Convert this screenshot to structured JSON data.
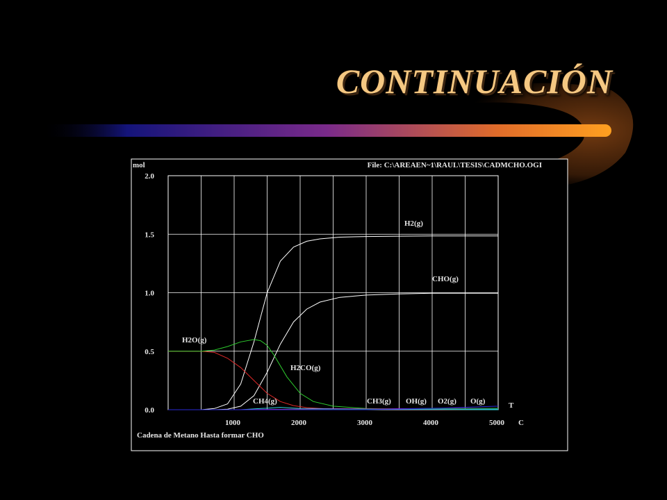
{
  "slide": {
    "title": "CONTINUACIÓN"
  },
  "chart_data": {
    "type": "line",
    "ylabel": "mol",
    "file_label": "File: C:\\AREAEN~1\\RAUL\\TESIS\\CADMCHO.OGI",
    "xaxis_unit_top": "T",
    "xaxis_unit_bottom": "C",
    "caption": "Cadena de Metano Hasta formar CHO",
    "xlim": [
      0,
      5000
    ],
    "ylim": [
      0,
      2
    ],
    "x_ticks": [
      1000,
      2000,
      3000,
      4000,
      5000
    ],
    "x_tick_labels": [
      "1000",
      "2000",
      "3000",
      "4000",
      "5000"
    ],
    "y_ticks": [
      0,
      0.5,
      1,
      1.5,
      2
    ],
    "y_tick_labels": [
      "0.0",
      "0.5",
      "1.0",
      "1.5",
      "2.0"
    ],
    "grid": true,
    "colors": {
      "background": "#000000",
      "frame": "#ffffff",
      "grid": "#ffffff",
      "title": "#f5c882"
    },
    "series": [
      {
        "name": "H2(g)",
        "color": "#ffffff",
        "x": [
          0,
          500,
          700,
          900,
          1100,
          1300,
          1500,
          1700,
          1900,
          2100,
          2300,
          2600,
          3000,
          3500,
          4000,
          4500,
          5000
        ],
        "y": [
          0.0,
          0.0,
          0.01,
          0.05,
          0.22,
          0.58,
          1.0,
          1.27,
          1.39,
          1.44,
          1.46,
          1.475,
          1.48,
          1.483,
          1.485,
          1.485,
          1.485
        ]
      },
      {
        "name": "CHO(g)",
        "color": "#ffffff",
        "x": [
          0,
          700,
          900,
          1100,
          1300,
          1500,
          1700,
          1900,
          2100,
          2300,
          2600,
          3000,
          3500,
          4000,
          4500,
          5000
        ],
        "y": [
          0.0,
          0.0,
          0.005,
          0.03,
          0.12,
          0.32,
          0.56,
          0.75,
          0.86,
          0.92,
          0.96,
          0.98,
          0.99,
          0.995,
          0.995,
          0.995
        ]
      },
      {
        "name": "H2O(g)",
        "color": "#e02828",
        "x": [
          0,
          500,
          700,
          900,
          1100,
          1300,
          1500,
          1700,
          1900,
          2100,
          2400,
          3000,
          5000
        ],
        "y": [
          0.5,
          0.5,
          0.49,
          0.44,
          0.36,
          0.25,
          0.14,
          0.07,
          0.035,
          0.018,
          0.008,
          0.003,
          0.001
        ]
      },
      {
        "name": "H2CO(g)",
        "color": "#2ecc2e",
        "x": [
          0,
          500,
          700,
          900,
          1100,
          1300,
          1400,
          1500,
          1600,
          1800,
          2000,
          2200,
          2500,
          3000,
          3500,
          5000
        ],
        "y": [
          0.5,
          0.5,
          0.51,
          0.54,
          0.58,
          0.6,
          0.59,
          0.55,
          0.47,
          0.28,
          0.14,
          0.07,
          0.03,
          0.01,
          0.004,
          0.002
        ]
      },
      {
        "name": "CH4(g)",
        "color": "#2fd6e0",
        "x": [
          0,
          1100,
          1400,
          1700,
          2000,
          5000
        ],
        "y": [
          0.0,
          0.0,
          0.01,
          0.02,
          0.01,
          0.0
        ]
      },
      {
        "name": "CH3(g)",
        "color": "#e020e0",
        "x": [
          0,
          1000,
          2000,
          3000,
          4000,
          5000
        ],
        "y": [
          0.0,
          0.0,
          0.005,
          0.008,
          0.01,
          0.012
        ]
      },
      {
        "name": "OH(g)",
        "color": "#1a9c1a",
        "x": [
          0,
          1500,
          3000,
          4000,
          5000
        ],
        "y": [
          0.0,
          0.0,
          0.004,
          0.008,
          0.012
        ]
      },
      {
        "name": "O2(g)",
        "color": "#1f9cc9",
        "x": [
          0,
          2000,
          3500,
          5000
        ],
        "y": [
          0.0,
          0.0,
          0.003,
          0.006
        ]
      },
      {
        "name": "O(g)",
        "color": "#2a2ad6",
        "x": [
          0,
          3000,
          4200,
          5000
        ],
        "y": [
          0.0,
          0.0,
          0.015,
          0.03
        ]
      }
    ]
  }
}
